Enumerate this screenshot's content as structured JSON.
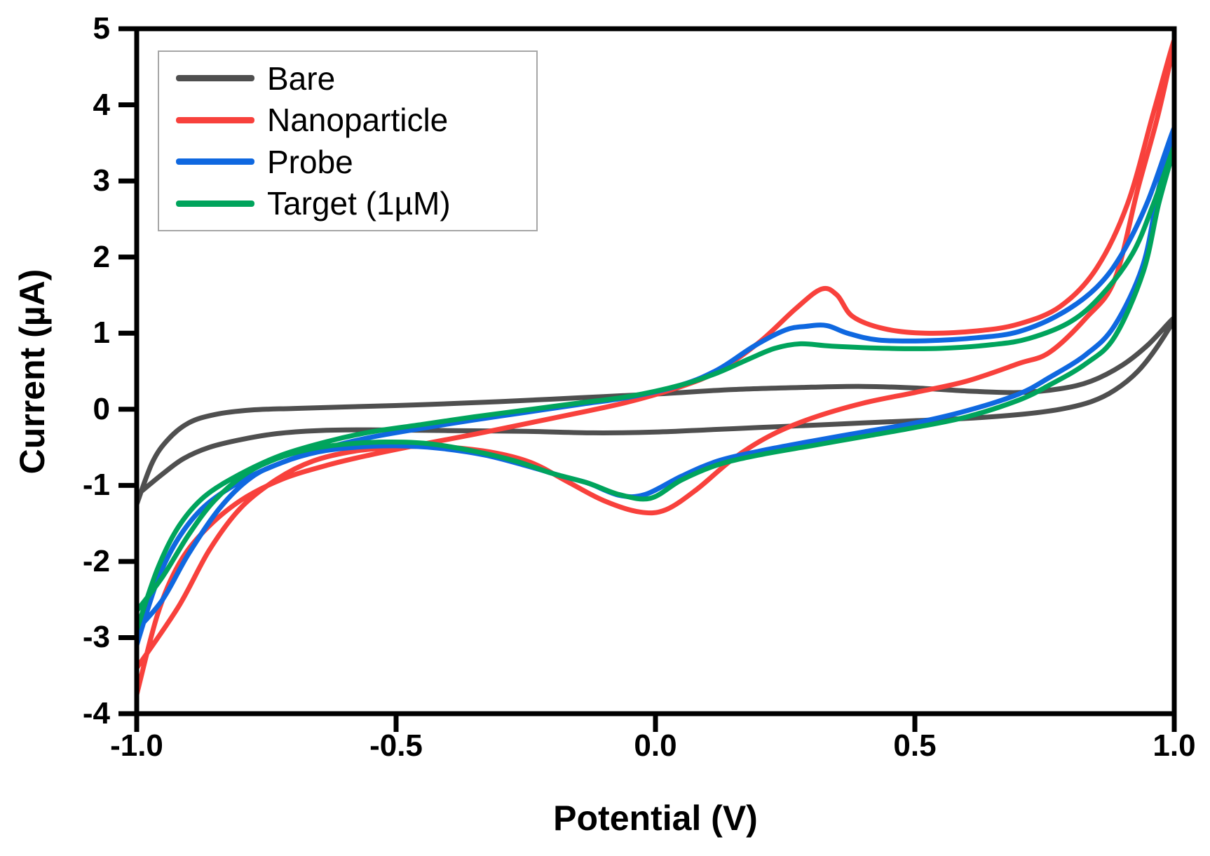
{
  "figure": {
    "background": "#ffffff",
    "frame_color": "#000000",
    "tick_color": "#000000",
    "text_color": "#000000",
    "legend_border_color": "#a6a6a6"
  },
  "chart_data": {
    "type": "line",
    "subtype": "cyclic-voltammogram",
    "title": "",
    "xlabel": "Potential (V)",
    "ylabel": "Current (µA)",
    "xlim": [
      -1.0,
      1.0
    ],
    "ylim": [
      -4,
      5
    ],
    "grid": false,
    "legend_position": "top-left",
    "x_ticks": {
      "values": [
        -1.0,
        -0.5,
        0.0,
        0.5,
        1.0
      ],
      "labels": [
        "-1.0",
        "-0.5",
        "0.0",
        "0.5",
        "1.0"
      ]
    },
    "y_ticks": {
      "values": [
        5,
        4,
        3,
        2,
        1,
        0,
        -1,
        -2,
        -3,
        -4
      ],
      "labels": [
        "5",
        "4",
        "3",
        "2",
        "1",
        "0",
        "-1",
        "-2",
        "-3",
        "-4"
      ]
    },
    "series": [
      {
        "name": "Bare",
        "color": "#4f4f4f",
        "points": [
          [
            -1.0,
            -1.25
          ],
          [
            -0.97,
            -0.7
          ],
          [
            -0.94,
            -0.4
          ],
          [
            -0.9,
            -0.18
          ],
          [
            -0.85,
            -0.07
          ],
          [
            -0.78,
            -0.01
          ],
          [
            -0.7,
            0.01
          ],
          [
            -0.6,
            0.03
          ],
          [
            -0.45,
            0.06
          ],
          [
            -0.3,
            0.1
          ],
          [
            -0.15,
            0.15
          ],
          [
            0.0,
            0.2
          ],
          [
            0.15,
            0.26
          ],
          [
            0.3,
            0.29
          ],
          [
            0.4,
            0.3
          ],
          [
            0.5,
            0.28
          ],
          [
            0.6,
            0.24
          ],
          [
            0.7,
            0.22
          ],
          [
            0.78,
            0.27
          ],
          [
            0.84,
            0.37
          ],
          [
            0.9,
            0.58
          ],
          [
            0.95,
            0.85
          ],
          [
            1.0,
            1.2
          ],
          [
            0.97,
            0.85
          ],
          [
            0.93,
            0.5
          ],
          [
            0.885,
            0.25
          ],
          [
            0.84,
            0.1
          ],
          [
            0.78,
            0.0
          ],
          [
            0.7,
            -0.07
          ],
          [
            0.6,
            -0.12
          ],
          [
            0.5,
            -0.15
          ],
          [
            0.4,
            -0.18
          ],
          [
            0.3,
            -0.21
          ],
          [
            0.2,
            -0.24
          ],
          [
            0.1,
            -0.27
          ],
          [
            0.0,
            -0.3
          ],
          [
            -0.12,
            -0.31
          ],
          [
            -0.25,
            -0.29
          ],
          [
            -0.4,
            -0.28
          ],
          [
            -0.55,
            -0.27
          ],
          [
            -0.65,
            -0.28
          ],
          [
            -0.73,
            -0.32
          ],
          [
            -0.8,
            -0.4
          ],
          [
            -0.86,
            -0.5
          ],
          [
            -0.91,
            -0.65
          ],
          [
            -0.95,
            -0.85
          ],
          [
            -1.0,
            -1.13
          ]
        ]
      },
      {
        "name": "Nanoparticle",
        "color": "#f8413c",
        "points": [
          [
            -1.0,
            -3.75
          ],
          [
            -0.96,
            -2.7
          ],
          [
            -0.92,
            -2.05
          ],
          [
            -0.87,
            -1.6
          ],
          [
            -0.8,
            -1.2
          ],
          [
            -0.72,
            -0.92
          ],
          [
            -0.63,
            -0.73
          ],
          [
            -0.55,
            -0.6
          ],
          [
            -0.45,
            -0.46
          ],
          [
            -0.35,
            -0.33
          ],
          [
            -0.25,
            -0.19
          ],
          [
            -0.15,
            -0.05
          ],
          [
            -0.05,
            0.1
          ],
          [
            0.05,
            0.3
          ],
          [
            0.12,
            0.5
          ],
          [
            0.2,
            0.88
          ],
          [
            0.27,
            1.32
          ],
          [
            0.32,
            1.58
          ],
          [
            0.35,
            1.5
          ],
          [
            0.38,
            1.22
          ],
          [
            0.44,
            1.06
          ],
          [
            0.52,
            1.0
          ],
          [
            0.62,
            1.03
          ],
          [
            0.7,
            1.12
          ],
          [
            0.78,
            1.35
          ],
          [
            0.85,
            1.85
          ],
          [
            0.91,
            2.7
          ],
          [
            0.96,
            3.9
          ],
          [
            1.0,
            4.85
          ],
          [
            0.97,
            3.9
          ],
          [
            0.93,
            2.9
          ],
          [
            0.885,
            1.7
          ],
          [
            0.83,
            1.2
          ],
          [
            0.76,
            0.75
          ],
          [
            0.7,
            0.6
          ],
          [
            0.6,
            0.37
          ],
          [
            0.5,
            0.22
          ],
          [
            0.4,
            0.08
          ],
          [
            0.3,
            -0.12
          ],
          [
            0.22,
            -0.35
          ],
          [
            0.15,
            -0.65
          ],
          [
            0.08,
            -1.05
          ],
          [
            0.02,
            -1.32
          ],
          [
            -0.03,
            -1.35
          ],
          [
            -0.1,
            -1.2
          ],
          [
            -0.17,
            -0.95
          ],
          [
            -0.24,
            -0.7
          ],
          [
            -0.32,
            -0.56
          ],
          [
            -0.42,
            -0.49
          ],
          [
            -0.5,
            -0.5
          ],
          [
            -0.58,
            -0.55
          ],
          [
            -0.66,
            -0.68
          ],
          [
            -0.73,
            -0.92
          ],
          [
            -0.8,
            -1.3
          ],
          [
            -0.86,
            -1.85
          ],
          [
            -0.92,
            -2.6
          ],
          [
            -1.0,
            -3.4
          ]
        ]
      },
      {
        "name": "Probe",
        "color": "#0f68e0",
        "points": [
          [
            -1.0,
            -3.1
          ],
          [
            -0.96,
            -2.25
          ],
          [
            -0.92,
            -1.7
          ],
          [
            -0.87,
            -1.28
          ],
          [
            -0.8,
            -0.95
          ],
          [
            -0.72,
            -0.7
          ],
          [
            -0.63,
            -0.5
          ],
          [
            -0.55,
            -0.37
          ],
          [
            -0.45,
            -0.25
          ],
          [
            -0.35,
            -0.14
          ],
          [
            -0.25,
            -0.04
          ],
          [
            -0.15,
            0.06
          ],
          [
            -0.05,
            0.16
          ],
          [
            0.05,
            0.32
          ],
          [
            0.12,
            0.52
          ],
          [
            0.19,
            0.83
          ],
          [
            0.25,
            1.04
          ],
          [
            0.29,
            1.09
          ],
          [
            0.33,
            1.1
          ],
          [
            0.37,
            1.0
          ],
          [
            0.43,
            0.91
          ],
          [
            0.52,
            0.9
          ],
          [
            0.62,
            0.94
          ],
          [
            0.7,
            1.02
          ],
          [
            0.78,
            1.25
          ],
          [
            0.85,
            1.6
          ],
          [
            0.9,
            2.05
          ],
          [
            0.95,
            2.75
          ],
          [
            1.0,
            3.7
          ],
          [
            0.97,
            2.9
          ],
          [
            0.94,
            1.9
          ],
          [
            0.885,
            1.1
          ],
          [
            0.83,
            0.72
          ],
          [
            0.76,
            0.42
          ],
          [
            0.7,
            0.2
          ],
          [
            0.6,
            -0.02
          ],
          [
            0.5,
            -0.18
          ],
          [
            0.4,
            -0.3
          ],
          [
            0.3,
            -0.42
          ],
          [
            0.2,
            -0.55
          ],
          [
            0.12,
            -0.68
          ],
          [
            0.05,
            -0.88
          ],
          [
            -0.02,
            -1.12
          ],
          [
            -0.07,
            -1.13
          ],
          [
            -0.13,
            -0.97
          ],
          [
            -0.18,
            -0.88
          ],
          [
            -0.25,
            -0.74
          ],
          [
            -0.33,
            -0.6
          ],
          [
            -0.42,
            -0.51
          ],
          [
            -0.5,
            -0.48
          ],
          [
            -0.58,
            -0.5
          ],
          [
            -0.65,
            -0.56
          ],
          [
            -0.72,
            -0.7
          ],
          [
            -0.78,
            -0.9
          ],
          [
            -0.84,
            -1.3
          ],
          [
            -0.9,
            -1.9
          ],
          [
            -0.95,
            -2.5
          ],
          [
            -1.0,
            -2.9
          ]
        ]
      },
      {
        "name": "Target (1µM)",
        "color": "#00a45c",
        "points": [
          [
            -1.0,
            -2.9
          ],
          [
            -0.96,
            -2.1
          ],
          [
            -0.92,
            -1.55
          ],
          [
            -0.87,
            -1.15
          ],
          [
            -0.8,
            -0.85
          ],
          [
            -0.72,
            -0.6
          ],
          [
            -0.63,
            -0.42
          ],
          [
            -0.55,
            -0.3
          ],
          [
            -0.45,
            -0.2
          ],
          [
            -0.35,
            -0.1
          ],
          [
            -0.25,
            -0.01
          ],
          [
            -0.15,
            0.08
          ],
          [
            -0.05,
            0.17
          ],
          [
            0.05,
            0.32
          ],
          [
            0.12,
            0.48
          ],
          [
            0.18,
            0.66
          ],
          [
            0.23,
            0.8
          ],
          [
            0.28,
            0.86
          ],
          [
            0.34,
            0.83
          ],
          [
            0.45,
            0.8
          ],
          [
            0.55,
            0.8
          ],
          [
            0.65,
            0.85
          ],
          [
            0.72,
            0.93
          ],
          [
            0.8,
            1.15
          ],
          [
            0.86,
            1.5
          ],
          [
            0.92,
            2.05
          ],
          [
            0.96,
            2.7
          ],
          [
            1.0,
            3.45
          ],
          [
            0.97,
            2.7
          ],
          [
            0.94,
            1.8
          ],
          [
            0.885,
            0.95
          ],
          [
            0.83,
            0.6
          ],
          [
            0.76,
            0.32
          ],
          [
            0.7,
            0.12
          ],
          [
            0.6,
            -0.1
          ],
          [
            0.5,
            -0.24
          ],
          [
            0.4,
            -0.36
          ],
          [
            0.3,
            -0.48
          ],
          [
            0.2,
            -0.6
          ],
          [
            0.12,
            -0.73
          ],
          [
            0.05,
            -0.93
          ],
          [
            -0.01,
            -1.17
          ],
          [
            -0.07,
            -1.12
          ],
          [
            -0.13,
            -0.97
          ],
          [
            -0.2,
            -0.84
          ],
          [
            -0.27,
            -0.68
          ],
          [
            -0.35,
            -0.55
          ],
          [
            -0.44,
            -0.45
          ],
          [
            -0.52,
            -0.43
          ],
          [
            -0.6,
            -0.46
          ],
          [
            -0.67,
            -0.53
          ],
          [
            -0.73,
            -0.65
          ],
          [
            -0.79,
            -0.85
          ],
          [
            -0.85,
            -1.2
          ],
          [
            -0.9,
            -1.65
          ],
          [
            -0.95,
            -2.2
          ],
          [
            -1.0,
            -2.65
          ]
        ]
      }
    ]
  }
}
